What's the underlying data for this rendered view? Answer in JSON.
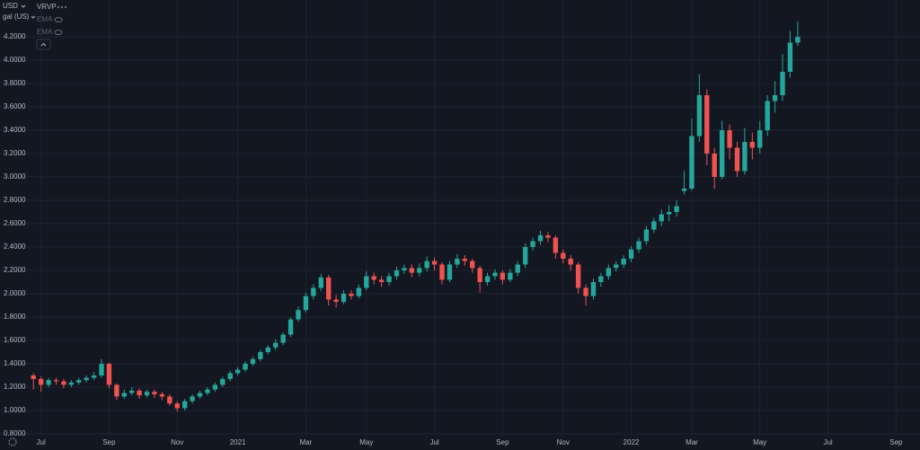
{
  "chart_data": {
    "type": "candlestick",
    "currency": "USD",
    "unit": "gal (US)",
    "indicators": [
      "VRVP",
      "EMA",
      "EMA"
    ],
    "categories": [
      null,
      "Jul",
      null,
      null,
      null,
      null,
      null,
      null,
      null,
      null,
      "Sep",
      null,
      null,
      null,
      null,
      null,
      null,
      null,
      null,
      "Nov",
      null,
      null,
      null,
      null,
      null,
      null,
      null,
      "2021",
      null,
      null,
      null,
      null,
      null,
      null,
      null,
      null,
      "Mar",
      null,
      null,
      null,
      null,
      null,
      null,
      null,
      "May",
      null,
      null,
      null,
      null,
      null,
      null,
      null,
      null,
      "Jul",
      null,
      null,
      null,
      null,
      null,
      null,
      null,
      null,
      "Sep",
      null,
      null,
      null,
      null,
      null,
      null,
      null,
      "Nov",
      null,
      null,
      null,
      null,
      null,
      null,
      null,
      null,
      "2022",
      null,
      null,
      null,
      null,
      null,
      null,
      null,
      "Mar",
      null,
      null,
      null,
      null,
      null,
      null,
      null,
      null,
      "May",
      null,
      null,
      null,
      null,
      null,
      null,
      null,
      null,
      "Jul",
      null,
      null,
      null,
      null,
      null,
      null,
      null,
      null,
      "Sep",
      null
    ],
    "series": [
      {
        "up_color": "#26a69a",
        "down_color": "#ef5350",
        "open": [
          1.3,
          1.27,
          1.22,
          1.26,
          1.25,
          1.22,
          1.24,
          1.26,
          1.28,
          1.3,
          1.4,
          1.22,
          1.12,
          1.15,
          1.17,
          1.13,
          1.16,
          1.14,
          1.12,
          1.06,
          1.02,
          1.08,
          1.12,
          1.15,
          1.18,
          1.22,
          1.27,
          1.32,
          1.35,
          1.4,
          1.44,
          1.5,
          1.54,
          1.58,
          1.65,
          1.78,
          1.86,
          1.98,
          2.05,
          2.14,
          1.95,
          1.93,
          2.0,
          1.98,
          2.05,
          2.15,
          2.12,
          2.1,
          2.15,
          2.2,
          2.22,
          2.18,
          2.22,
          2.28,
          2.25,
          2.12,
          2.25,
          2.3,
          2.28,
          2.22,
          2.1,
          2.15,
          2.18,
          2.12,
          2.18,
          2.25,
          2.4,
          2.45,
          2.5,
          2.48,
          2.35,
          2.3,
          2.25,
          2.05,
          1.98,
          2.1,
          2.15,
          2.22,
          2.25,
          2.3,
          2.38,
          2.45,
          2.55,
          2.62,
          2.68,
          2.7,
          2.88,
          2.9,
          3.35,
          3.7,
          3.2,
          3.0,
          3.4,
          3.25,
          3.05,
          3.3,
          3.25,
          3.4,
          3.65,
          3.7,
          3.9,
          4.15,
          null,
          null,
          null,
          null,
          null,
          null,
          null,
          null,
          null,
          null,
          null,
          null,
          null,
          null
        ],
        "high": [
          1.32,
          1.29,
          1.28,
          1.28,
          1.27,
          1.26,
          1.28,
          1.3,
          1.33,
          1.44,
          1.41,
          1.23,
          1.18,
          1.2,
          1.19,
          1.18,
          1.18,
          1.16,
          1.14,
          1.08,
          1.1,
          1.14,
          1.17,
          1.2,
          1.24,
          1.29,
          1.34,
          1.37,
          1.42,
          1.46,
          1.52,
          1.56,
          1.61,
          1.67,
          1.8,
          1.89,
          2.01,
          2.08,
          2.17,
          2.16,
          1.99,
          2.03,
          2.03,
          2.08,
          2.19,
          2.18,
          2.15,
          2.18,
          2.23,
          2.25,
          2.25,
          2.26,
          2.32,
          2.31,
          2.27,
          2.28,
          2.34,
          2.33,
          2.3,
          2.24,
          2.18,
          2.21,
          2.2,
          2.21,
          2.28,
          2.43,
          2.48,
          2.54,
          2.53,
          2.5,
          2.38,
          2.33,
          2.27,
          2.08,
          2.13,
          2.18,
          2.25,
          2.28,
          2.33,
          2.41,
          2.48,
          2.58,
          2.65,
          2.72,
          2.76,
          2.8,
          3.05,
          3.5,
          3.88,
          3.75,
          3.25,
          3.48,
          3.45,
          3.3,
          3.42,
          3.38,
          3.48,
          3.7,
          3.82,
          4.05,
          4.25,
          4.33,
          null,
          null,
          null,
          null,
          null,
          null,
          null,
          null,
          null,
          null,
          null,
          null,
          null,
          null
        ],
        "low": [
          1.18,
          1.16,
          1.2,
          1.22,
          1.19,
          1.2,
          1.22,
          1.24,
          1.26,
          1.28,
          1.19,
          1.09,
          1.1,
          1.13,
          1.1,
          1.11,
          1.11,
          1.09,
          1.04,
          0.99,
          1.0,
          1.06,
          1.1,
          1.13,
          1.16,
          1.2,
          1.25,
          1.3,
          1.33,
          1.38,
          1.42,
          1.48,
          1.52,
          1.56,
          1.63,
          1.76,
          1.84,
          1.95,
          2.02,
          1.9,
          1.88,
          1.91,
          1.95,
          1.96,
          2.03,
          2.08,
          2.06,
          2.07,
          2.12,
          2.17,
          2.14,
          2.15,
          2.19,
          2.2,
          2.08,
          2.1,
          2.22,
          2.24,
          2.18,
          2.01,
          2.07,
          2.12,
          2.08,
          2.1,
          2.15,
          2.22,
          2.37,
          2.42,
          2.44,
          2.3,
          2.26,
          2.2,
          2.0,
          1.9,
          1.95,
          2.06,
          2.12,
          2.19,
          2.22,
          2.27,
          2.35,
          2.42,
          2.52,
          2.58,
          2.62,
          2.66,
          2.85,
          2.88,
          3.3,
          3.1,
          2.9,
          2.98,
          3.15,
          3.0,
          3.02,
          3.15,
          3.2,
          3.35,
          3.55,
          3.65,
          3.85,
          4.12,
          null,
          null,
          null,
          null,
          null,
          null,
          null,
          null,
          null,
          null,
          null,
          null,
          null,
          null
        ],
        "close": [
          1.27,
          1.22,
          1.26,
          1.25,
          1.22,
          1.24,
          1.26,
          1.28,
          1.3,
          1.4,
          1.22,
          1.12,
          1.15,
          1.17,
          1.13,
          1.16,
          1.14,
          1.12,
          1.06,
          1.02,
          1.08,
          1.12,
          1.15,
          1.18,
          1.22,
          1.27,
          1.32,
          1.35,
          1.4,
          1.44,
          1.5,
          1.54,
          1.58,
          1.65,
          1.78,
          1.86,
          1.98,
          2.05,
          2.14,
          1.95,
          1.93,
          2.0,
          1.98,
          2.05,
          2.15,
          2.12,
          2.1,
          2.15,
          2.2,
          2.22,
          2.18,
          2.22,
          2.28,
          2.25,
          2.12,
          2.25,
          2.3,
          2.28,
          2.22,
          2.1,
          2.15,
          2.18,
          2.12,
          2.18,
          2.25,
          2.4,
          2.45,
          2.5,
          2.48,
          2.35,
          2.3,
          2.25,
          2.05,
          1.98,
          2.1,
          2.15,
          2.22,
          2.25,
          2.3,
          2.38,
          2.45,
          2.55,
          2.62,
          2.68,
          2.7,
          2.75,
          2.9,
          3.35,
          3.7,
          3.2,
          3.0,
          3.4,
          3.25,
          3.05,
          3.3,
          3.25,
          3.4,
          3.65,
          3.7,
          3.9,
          4.15,
          4.2,
          null,
          null,
          null,
          null,
          null,
          null,
          null,
          null,
          null,
          null,
          null,
          null,
          null,
          null
        ]
      }
    ],
    "ylim": [
      0.785,
      4.515
    ],
    "yticks": [
      {
        "value": 0.8,
        "label": "0.8000"
      },
      {
        "value": 1.0,
        "label": "1.0000"
      },
      {
        "value": 1.2,
        "label": "1.2000"
      },
      {
        "value": 1.4,
        "label": "1.4000"
      },
      {
        "value": 1.6,
        "label": "1.6000"
      },
      {
        "value": 1.8,
        "label": "1.8000"
      },
      {
        "value": 2.0,
        "label": "2.0000"
      },
      {
        "value": 2.2,
        "label": "2.2000"
      },
      {
        "value": 2.4,
        "label": "2.4000"
      },
      {
        "value": 2.6,
        "label": "2.6000"
      },
      {
        "value": 2.8,
        "label": "2.8000"
      },
      {
        "value": 3.0,
        "label": "3.0000"
      },
      {
        "value": 3.2,
        "label": "3.2000"
      },
      {
        "value": 3.4,
        "label": "3.4000"
      },
      {
        "value": 3.6,
        "label": "3.6000"
      },
      {
        "value": 3.8,
        "label": "3.8000"
      },
      {
        "value": 4.0,
        "label": "4.0000"
      },
      {
        "value": 4.2,
        "label": "4.2000"
      }
    ],
    "grid": true
  }
}
